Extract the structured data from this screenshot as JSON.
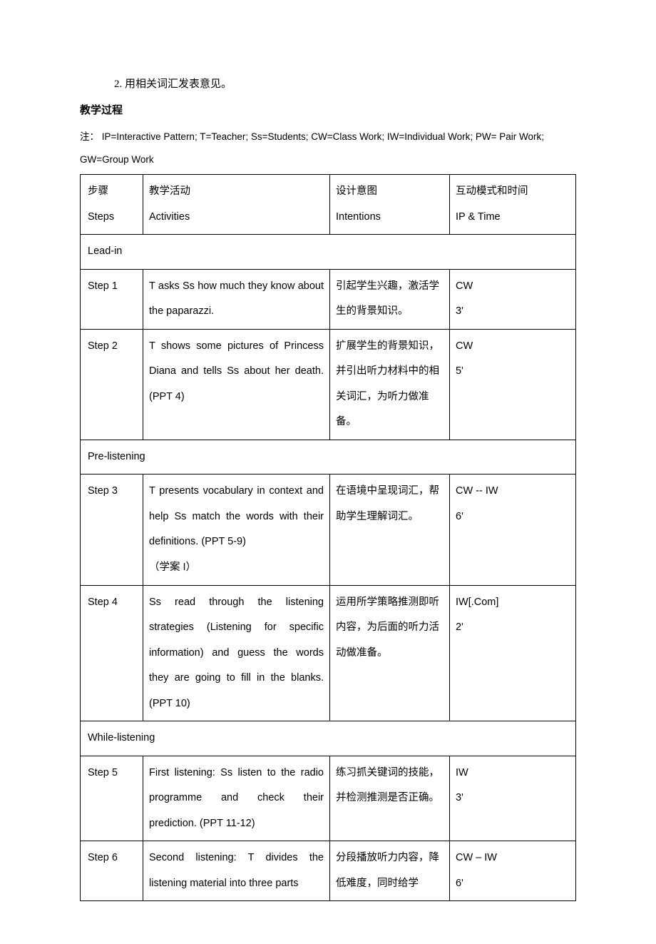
{
  "pre_text": {
    "line1": "2.  用相关词汇发表意见。",
    "heading": "教学过程",
    "note": "注：  IP=Interactive Pattern; T=Teacher; Ss=Students; CW=Class Work; IW=Individual Work; PW= Pair Work; GW=Group Work"
  },
  "header": {
    "c1a": "步骤",
    "c1b": "Steps",
    "c2a": "教学活动",
    "c2b": "Activities",
    "c3a": "设计意图",
    "c3b": "Intentions",
    "c4a": "互动模式和时间",
    "c4b": "IP & Time"
  },
  "sections": {
    "s1": "Lead-in",
    "s2": "Pre-listening",
    "s3": "While-listening"
  },
  "rows": {
    "r1": {
      "step": "Step 1",
      "activity": "T asks Ss    how much they know about the paparazzi.",
      "intent": "引起学生兴趣，激活学生的背景知识。",
      "ip_a": "CW",
      "ip_b": "3'"
    },
    "r2": {
      "step": "Step 2",
      "activity": "T    shows    some    pictures    of Princess Diana and tells Ss about her death. (PPT 4)",
      "intent": "扩展学生的背景知识，并引出听力材料中的相关词汇，为听力做准备。",
      "ip_a": "CW",
      "ip_b": "5'"
    },
    "r3": {
      "step": "Step 3",
      "activity": "T presents vocabulary in context and help Ss match the words with their definitions.    (PPT 5-9)\n（学案 I）",
      "intent": "在语境中呈现词汇，帮助学生理解词汇。",
      "ip_a": "CW -- IW",
      "ip_b": "6'"
    },
    "r4": {
      "step": "Step 4",
      "activity": "Ss  read  through  the  listening strategies (Listening for specific information) and guess the words they are going to fill in the blanks. (PPT 10)",
      "intent": "运用所学策略推测即听内容，为后面的听力活动做准备。",
      "ip_a": "IW[.Com]",
      "ip_b": "2'"
    },
    "r5": {
      "step": "Step 5",
      "activity": "First  listening:  Ss  listen  to  the radio programme and check their prediction. (PPT 11-12)",
      "intent": "练习抓关键词的技能，并检测推测是否正确。",
      "ip_a": "IW",
      "ip_b": "3'"
    },
    "r6": {
      "step": "Step 6",
      "activity": "Second  listening:  T  divides  the listening material into three parts",
      "intent": "分段播放听力内容，降低难度，同时给学",
      "ip_a": "CW – IW",
      "ip_b": "6'"
    }
  }
}
